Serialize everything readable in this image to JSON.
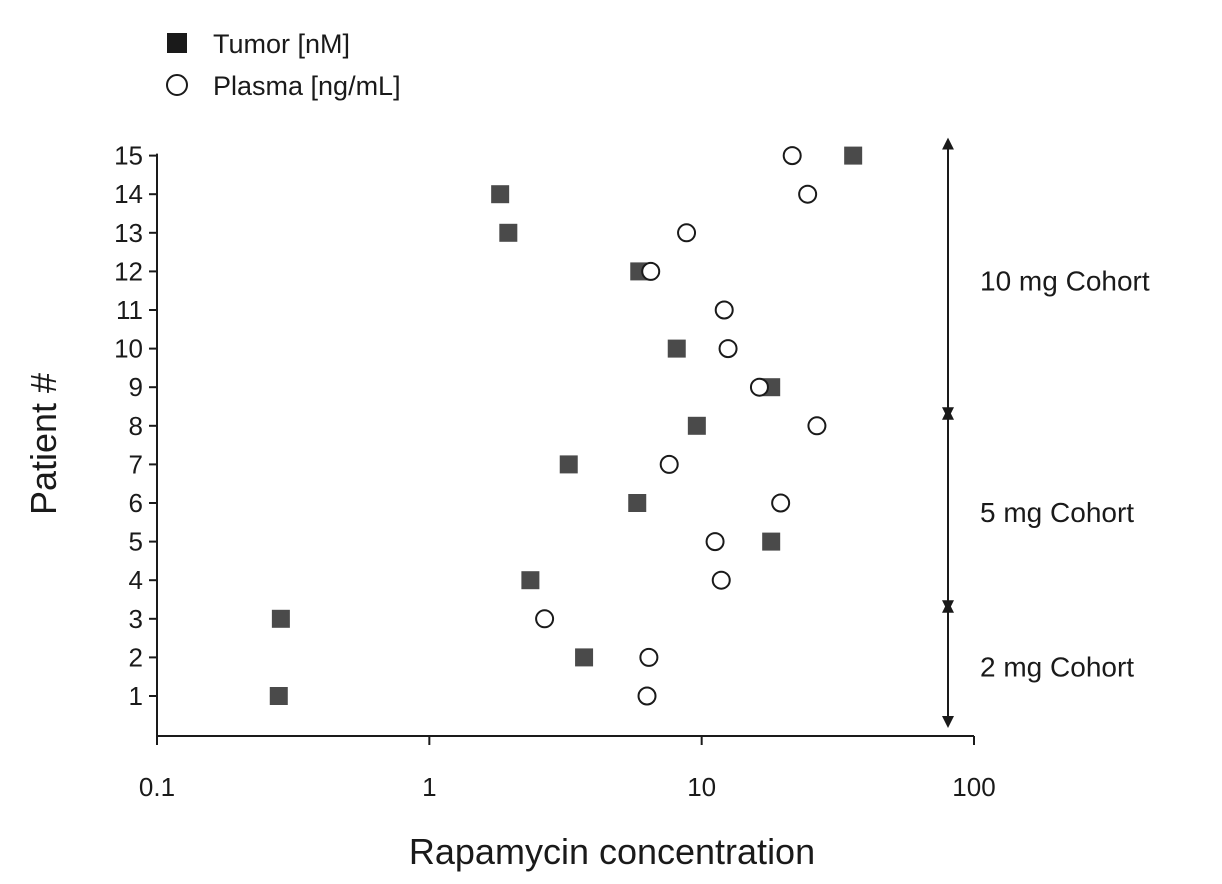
{
  "chart_data": {
    "type": "scatter",
    "title": "",
    "xlabel": "Rapamycin concentration",
    "ylabel": "Patient #",
    "xscale": "log",
    "xlim": [
      0.1,
      100
    ],
    "ylim": [
      0.5,
      15
    ],
    "xticks": [
      "0.1",
      "1",
      "10",
      "100"
    ],
    "yticks": [
      "1",
      "2",
      "3",
      "4",
      "5",
      "6",
      "7",
      "8",
      "9",
      "10",
      "11",
      "12",
      "13",
      "14",
      "15"
    ],
    "grid": false,
    "legend_position": "top-left",
    "series": [
      {
        "name": "Tumor [nM]",
        "marker": "filled-square",
        "color": "#4a4a4a",
        "points": [
          {
            "x": 0.28,
            "y": 1
          },
          {
            "x": 3.7,
            "y": 2
          },
          {
            "x": 0.285,
            "y": 3
          },
          {
            "x": 2.35,
            "y": 4
          },
          {
            "x": 18.0,
            "y": 5
          },
          {
            "x": 5.8,
            "y": 6
          },
          {
            "x": 3.25,
            "y": 7
          },
          {
            "x": 9.6,
            "y": 8
          },
          {
            "x": 18.0,
            "y": 9
          },
          {
            "x": 8.1,
            "y": 10
          },
          {
            "x": 5.9,
            "y": 12
          },
          {
            "x": 1.95,
            "y": 13
          },
          {
            "x": 1.82,
            "y": 14
          },
          {
            "x": 36.0,
            "y": 15
          }
        ]
      },
      {
        "name": "Plasma [ng/mL]",
        "marker": "open-circle",
        "color": "#1a1a1a",
        "points": [
          {
            "x": 6.3,
            "y": 1
          },
          {
            "x": 6.4,
            "y": 2
          },
          {
            "x": 2.65,
            "y": 3
          },
          {
            "x": 11.8,
            "y": 4
          },
          {
            "x": 11.2,
            "y": 5
          },
          {
            "x": 19.5,
            "y": 6
          },
          {
            "x": 7.6,
            "y": 7
          },
          {
            "x": 26.5,
            "y": 8
          },
          {
            "x": 16.3,
            "y": 9
          },
          {
            "x": 12.5,
            "y": 10
          },
          {
            "x": 12.1,
            "y": 11
          },
          {
            "x": 6.5,
            "y": 12
          },
          {
            "x": 8.8,
            "y": 13
          },
          {
            "x": 24.5,
            "y": 14
          },
          {
            "x": 21.5,
            "y": 15
          }
        ]
      }
    ],
    "cohorts": [
      {
        "label": "10 mg Cohort",
        "from": 9,
        "to": 15
      },
      {
        "label": "5 mg Cohort",
        "from": 4,
        "to": 8
      },
      {
        "label": "2 mg Cohort",
        "from": 1,
        "to": 3
      }
    ]
  }
}
